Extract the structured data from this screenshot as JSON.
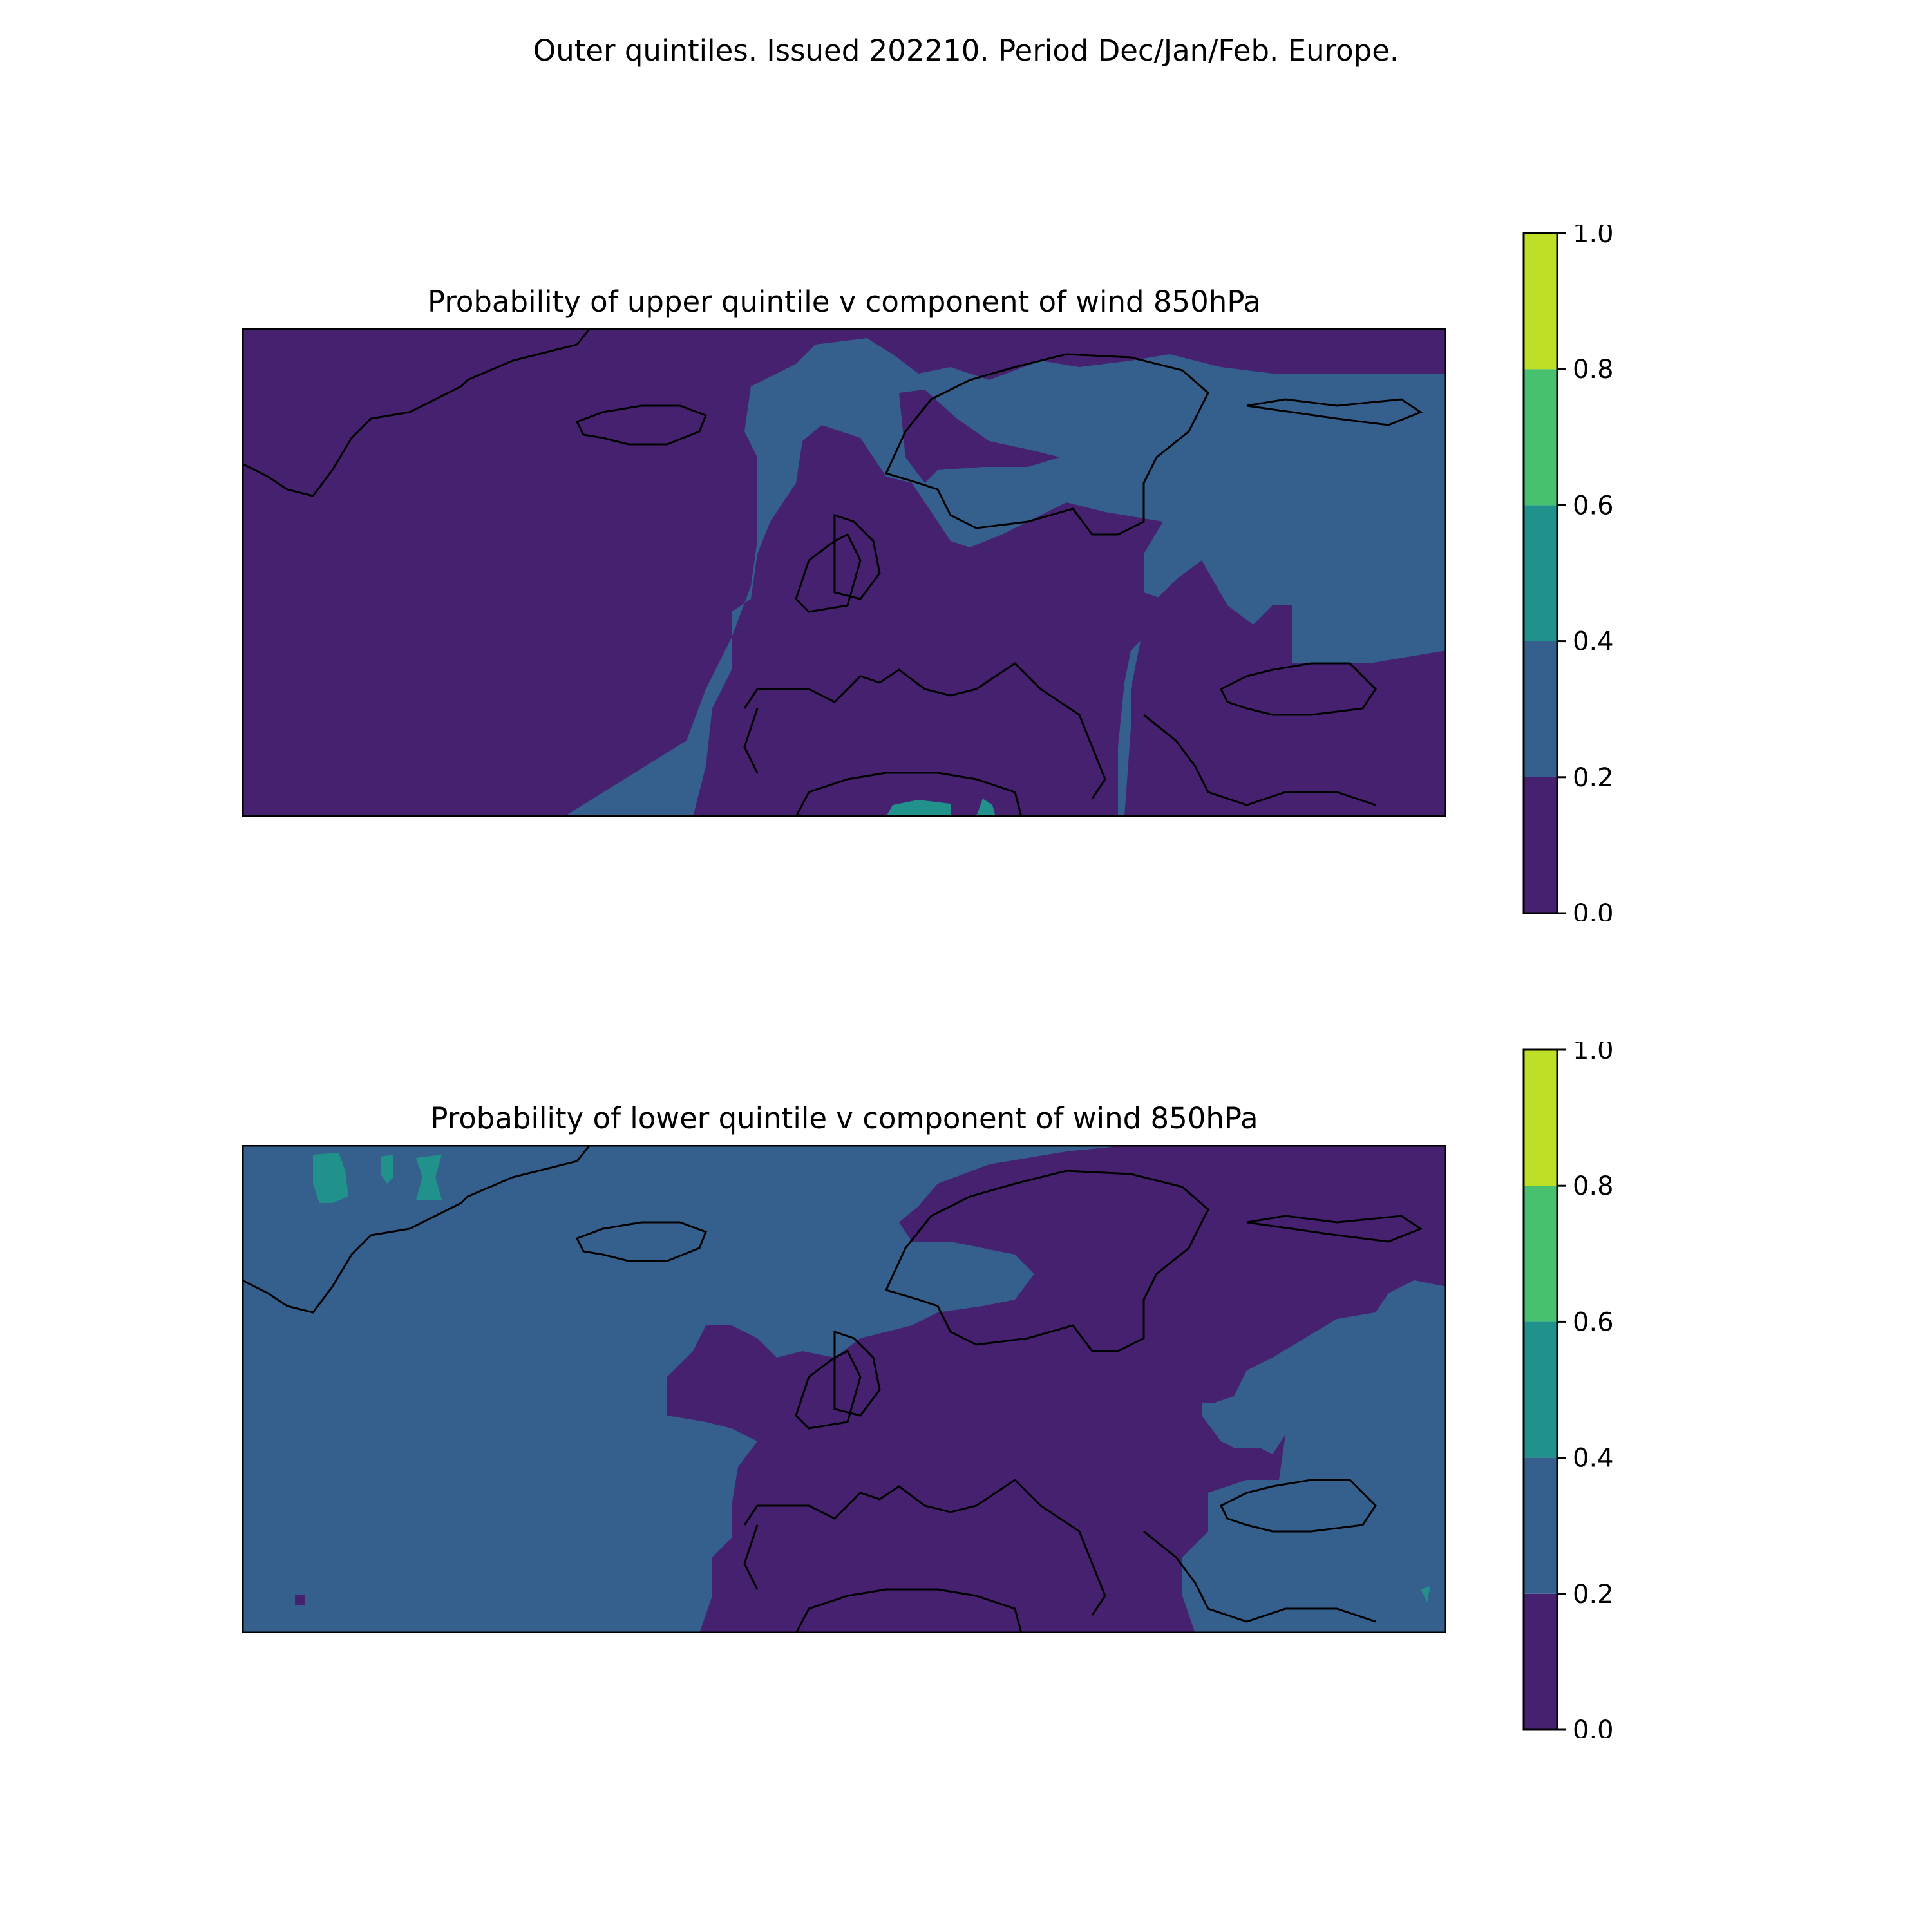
{
  "figure": {
    "title": "Outer quintiles. Issued 202210. Period Dec/Jan/Feb. Europe."
  },
  "colorbar": {
    "levels": [
      0.0,
      0.2,
      0.4,
      0.6,
      0.8,
      1.0
    ],
    "tick_labels": [
      "0.0",
      "0.2",
      "0.4",
      "0.6",
      "0.8",
      "1.0"
    ],
    "colors": [
      "#46216f",
      "#355f8d",
      "#21918c",
      "#47c16e",
      "#bddf26"
    ]
  },
  "panels": [
    {
      "title": "Probability of upper quintile v component of wind 850hPa",
      "background_band": "0.0-0.2",
      "regions": [
        {
          "band": "0.2-0.4",
          "area": "North Sea, Scandinavia interior, Baltic, Western/Central Europe, Iberia, Mediterranean"
        },
        {
          "band": "0.0-0.2",
          "area": "Norwegian coast, Eastern Europe, Balkans, Black Sea"
        },
        {
          "band": "0.4-0.6",
          "area": "North Africa coast"
        }
      ]
    },
    {
      "title": "Probability of lower quintile v component of wind 850hPa",
      "background_band": "0.2-0.4",
      "regions": [
        {
          "band": "0.0-0.2",
          "area": "Scandinavia, Baltic, British Isles, Western/Central Europe, Iberia, Mediterranean, Balkans"
        },
        {
          "band": "0.4-0.6",
          "area": "Greenland patches, eastern Mediterranean spot"
        }
      ]
    }
  ]
}
